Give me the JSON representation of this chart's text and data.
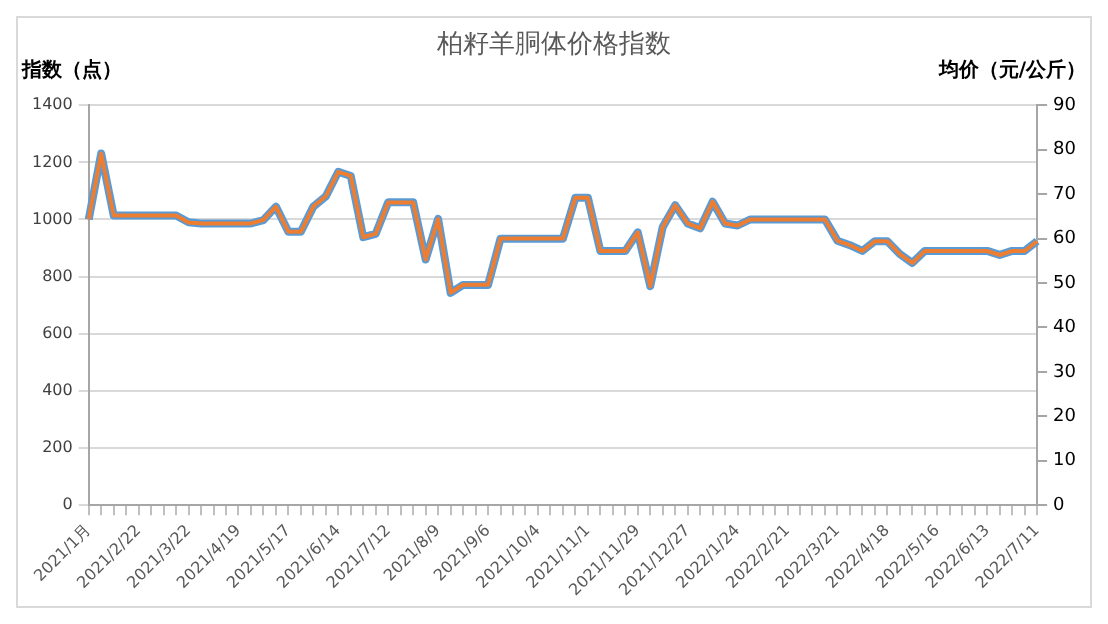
{
  "chart_data": {
    "type": "line",
    "title": "柏籽羊胴体价格指数",
    "ylabel": "指数（点）",
    "y2label": "均价（元/公斤）",
    "categories": [
      "2021/1月",
      null,
      null,
      null,
      "2021/2/22",
      null,
      null,
      null,
      "2021/3/22",
      null,
      null,
      null,
      "2021/4/19",
      null,
      null,
      null,
      "2021/5/17",
      null,
      null,
      null,
      "2021/6/14",
      null,
      null,
      null,
      "2021/7/12",
      null,
      null,
      null,
      "2021/8/9",
      null,
      null,
      null,
      "2021/9/6",
      null,
      null,
      null,
      "2021/10/4",
      null,
      null,
      null,
      "2021/11/1",
      null,
      null,
      null,
      "2021/11/29",
      null,
      null,
      null,
      "2021/12/27",
      null,
      null,
      null,
      "2022/1/24",
      null,
      null,
      null,
      "2022/2/21",
      null,
      null,
      null,
      "2022/3/21",
      null,
      null,
      null,
      "2022/4/18",
      null,
      null,
      null,
      "2022/5/16",
      null,
      null,
      null,
      "2022/6/13",
      null,
      null,
      null,
      "2022/7/11"
    ],
    "series": [
      {
        "color": "#5b9bd5",
        "values": [
          1000,
          1231,
          1014,
          1014,
          1014,
          1014,
          1014,
          1014,
          990,
          986,
          986,
          986,
          986,
          986,
          998,
          1045,
          957,
          957,
          1045,
          1081,
          1167,
          1152,
          938,
          950,
          1060,
          1060,
          1060,
          860,
          1002,
          743,
          771,
          771,
          771,
          933,
          933,
          933,
          933,
          933,
          933,
          1076,
          1076,
          890,
          890,
          890,
          955,
          767,
          974,
          1050,
          986,
          969,
          1062,
          986,
          979,
          1000,
          1000,
          1000,
          1000,
          1000,
          1000,
          1000,
          926,
          910,
          890,
          924,
          924,
          879,
          848,
          890,
          890,
          890,
          890,
          890,
          890,
          876,
          890,
          890,
          924
        ]
      },
      {
        "color": "#ed7d31",
        "axis": "y2",
        "values": [
          64.3,
          79.1,
          65.2,
          65.2,
          65.2,
          65.2,
          65.2,
          65.2,
          63.6,
          63.4,
          63.4,
          63.4,
          63.4,
          63.4,
          64.2,
          67.2,
          61.5,
          61.5,
          67.2,
          69.5,
          75.0,
          74.1,
          60.3,
          61.1,
          68.1,
          68.1,
          68.1,
          55.3,
          64.4,
          47.8,
          49.6,
          49.6,
          49.6,
          60.0,
          60.0,
          60.0,
          60.0,
          60.0,
          60.0,
          69.2,
          69.2,
          57.2,
          57.2,
          57.2,
          61.4,
          49.3,
          62.6,
          67.5,
          63.4,
          62.3,
          68.3,
          63.4,
          62.9,
          64.3,
          64.3,
          64.3,
          64.3,
          64.3,
          64.3,
          64.3,
          59.5,
          58.5,
          57.2,
          59.4,
          59.4,
          56.5,
          54.5,
          57.2,
          57.2,
          57.2,
          57.2,
          57.2,
          57.2,
          56.3,
          57.2,
          57.2,
          59.4
        ]
      }
    ],
    "ylim": [
      0,
      1400
    ],
    "yticks": [
      0,
      200,
      400,
      600,
      800,
      1000,
      1200,
      1400
    ],
    "y2lim": [
      0,
      90
    ],
    "y2ticks": [
      0,
      10,
      20,
      30,
      40,
      50,
      60,
      70,
      80,
      90
    ],
    "grid": "y",
    "legend": false,
    "marker": "none",
    "line_style": "solid"
  }
}
